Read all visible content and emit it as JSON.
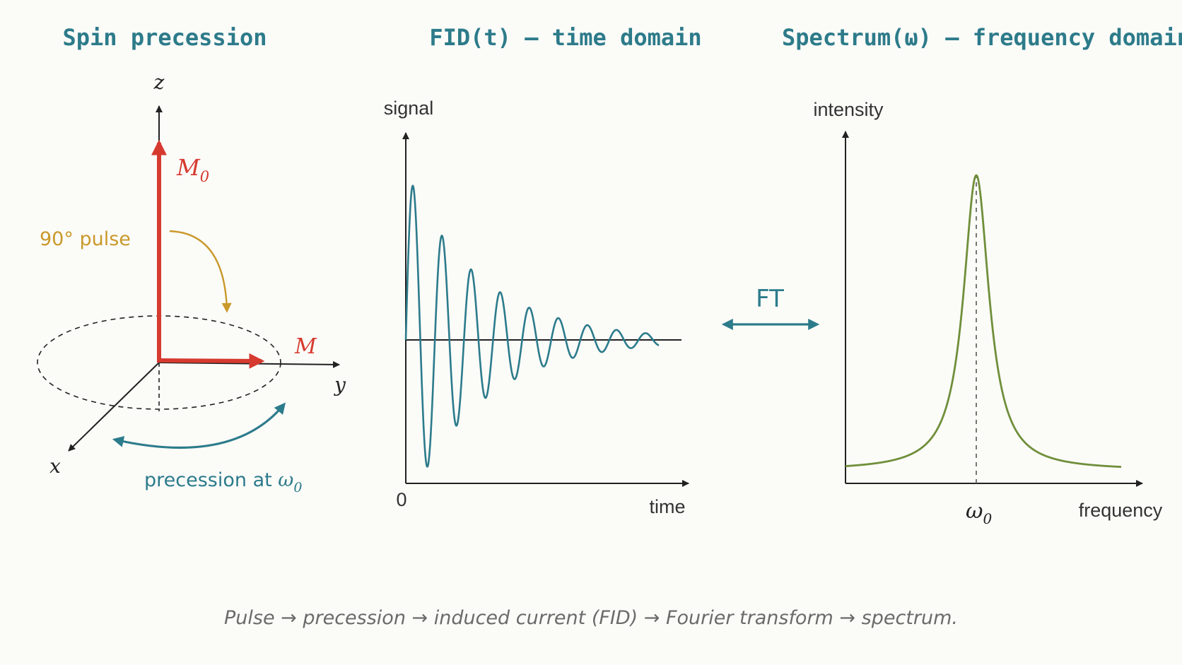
{
  "titles": {
    "spin": "Spin precession",
    "fid": "FID(t) — time domain",
    "spectrum": "Spectrum(ω) — frequency domain"
  },
  "spin_diagram": {
    "axis_z": "z",
    "axis_y": "y",
    "axis_x": "x",
    "m0_symbol": "M",
    "m0_subscript": "0",
    "m_label": "M",
    "pulse_label": "90° pulse",
    "precession_prefix": "precession at ",
    "precession_symbol": "ω",
    "precession_subscript": "0",
    "colors": {
      "magnetization": "#d63a2f",
      "pulse": "#c9992b",
      "precession": "#2c7b8b",
      "axes": "#222222"
    }
  },
  "fid_chart": {
    "ylabel": "signal",
    "xlabel": "time",
    "origin_label": "0",
    "color": "#2c7b8b"
  },
  "ft": {
    "label": "FT",
    "color": "#2c7b8b"
  },
  "spectrum_chart": {
    "ylabel": "intensity",
    "xlabel": "frequency",
    "peak_symbol": "ω",
    "peak_subscript": "0",
    "color": "#6f8f3a"
  },
  "caption": "Pulse → precession → induced current (FID) → Fourier transform → spectrum.",
  "chart_data": [
    {
      "type": "line",
      "name": "fid",
      "x_range": [
        0,
        1
      ],
      "y_range": [
        -1,
        1
      ],
      "oscillation_cycles": 8.7,
      "decay_rate": 3.4,
      "amplitude": 1
    },
    {
      "type": "line",
      "name": "spectrum",
      "x_range": [
        -1,
        1
      ],
      "peak_position": 0,
      "peak_height": 1,
      "half_width": 0.12,
      "baseline_offset": 0.02
    }
  ]
}
